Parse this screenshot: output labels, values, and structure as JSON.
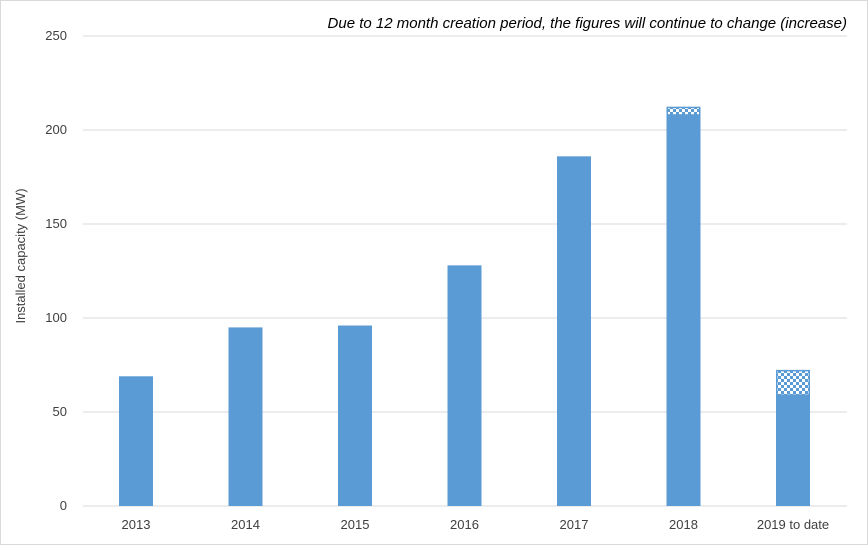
{
  "chart_data": {
    "type": "bar",
    "categories": [
      "2013",
      "2014",
      "2015",
      "2016",
      "2017",
      "2018",
      "2019 to date"
    ],
    "series": [
      {
        "values": [
          69,
          95,
          96,
          128,
          186,
          208,
          59
        ]
      },
      {
        "values": [
          0,
          0,
          0,
          0,
          0,
          4,
          13
        ]
      }
    ],
    "ylabel": "Installed capacity (MW)",
    "xlabel": "",
    "ylim": [
      0,
      250
    ],
    "yticks": [
      0,
      50,
      100,
      150,
      200,
      250
    ],
    "annotation": "Due to 12 month creation period, the figures will continue to change (increase)",
    "grid": true,
    "stacked": true,
    "colors": {
      "bar": "#5b9bd5",
      "pattern_fill": "#ffffff",
      "pattern_dark": "#5b9bd5",
      "grid": "#d9d9d9",
      "text": "#404040"
    }
  }
}
